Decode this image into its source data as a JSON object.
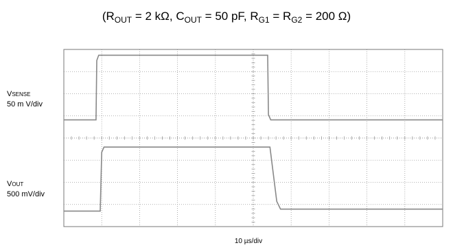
{
  "title": {
    "open": "(",
    "r_out": "R",
    "r_out_sub": "OUT",
    "r_out_val": " = 2 kΩ, ",
    "c_out": "C",
    "c_out_sub": "OUT",
    "c_out_val": " = 50 pF, ",
    "r_g1": "R",
    "r_g1_sub": "G1",
    "eq": " = ",
    "r_g2": "R",
    "r_g2_sub": "G2",
    "r_val": " = 200 Ω)"
  },
  "channels": [
    {
      "name": "V",
      "name_sub": "SENSE",
      "scale": "50 m V/div"
    },
    {
      "name": "V",
      "name_sub": "OUT",
      "scale": "500  mV/div"
    }
  ],
  "chart_data": {
    "type": "line",
    "title": "",
    "xlabel": "10 µs/div",
    "xlim": [
      0,
      100
    ],
    "grid": true,
    "grid_style": "dotted",
    "series": [
      {
        "x": [
          0,
          8.5,
          8.7,
          9.2,
          53.8,
          54.0,
          54.6,
          100
        ],
        "y": [
          0,
          0,
          0.9,
          0.98,
          0.98,
          0.08,
          0.0,
          0.0
        ]
      },
      {
        "x": [
          0,
          9.6,
          10.0,
          10.6,
          54.4,
          56.2,
          57.2,
          100
        ],
        "y": [
          0,
          0,
          0.9,
          0.98,
          0.98,
          0.15,
          0.03,
          0.03
        ]
      }
    ],
    "colors": {
      "trace": "#888888",
      "grid": "#999999",
      "frame": "#777777"
    }
  }
}
